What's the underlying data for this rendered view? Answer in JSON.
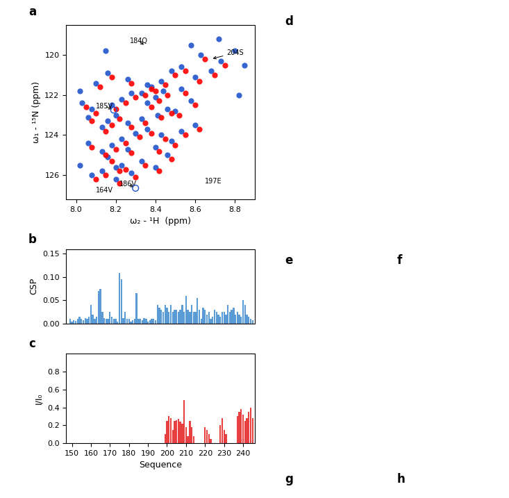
{
  "chart_data": [
    {
      "type": "scatter",
      "panel_label": "a",
      "xlabel": "ω₂ - ¹H  (ppm)",
      "ylabel": "ω₁ - ¹⁵N (ppm)",
      "xlim": [
        7.95,
        8.9
      ],
      "ylim": [
        127.2,
        118.5
      ],
      "xticks": [
        8.8,
        8.6,
        8.4,
        8.2,
        8.0
      ],
      "yticks": [
        120,
        122,
        124,
        126
      ],
      "series": [
        {
          "color": "#2255cc",
          "marker": "circle",
          "x": [
            8.63,
            8.53,
            8.6,
            8.48,
            8.43,
            8.38,
            8.33,
            8.4,
            8.36,
            8.28,
            8.23,
            8.18,
            8.46,
            8.41,
            8.33,
            8.26,
            8.2,
            8.16,
            8.13,
            8.08,
            8.06,
            8.03,
            8.3,
            8.23,
            8.18,
            8.13,
            8.4,
            8.48,
            8.43,
            8.36,
            8.26,
            8.16,
            8.06,
            8.33,
            8.4,
            8.28,
            8.2,
            8.13,
            8.23,
            8.46,
            8.53,
            8.58,
            8.5,
            8.44,
            8.36,
            8.26,
            8.16,
            8.1,
            8.68,
            8.73,
            8.6,
            8.53,
            8.2,
            8.08,
            8.15,
            8.58,
            8.72,
            8.8,
            8.82,
            8.85,
            8.02,
            8.02
          ],
          "y": [
            120.0,
            120.6,
            121.1,
            120.8,
            121.3,
            121.6,
            121.9,
            122.1,
            122.4,
            121.9,
            122.2,
            122.5,
            122.7,
            123.0,
            123.2,
            123.4,
            123.0,
            123.3,
            123.6,
            122.7,
            123.1,
            122.4,
            123.9,
            124.2,
            124.5,
            124.8,
            124.6,
            124.3,
            124.0,
            123.7,
            124.7,
            125.1,
            124.4,
            125.3,
            125.6,
            125.9,
            126.2,
            125.8,
            125.5,
            125.0,
            121.7,
            122.3,
            122.8,
            121.8,
            121.5,
            121.2,
            120.9,
            121.4,
            120.8,
            120.3,
            123.5,
            123.8,
            125.6,
            126.0,
            119.8,
            119.5,
            119.2,
            119.8,
            122.0,
            120.5,
            121.8,
            125.5
          ]
        },
        {
          "color": "red",
          "marker": "circle",
          "x": [
            8.65,
            8.55,
            8.62,
            8.5,
            8.45,
            8.4,
            8.35,
            8.42,
            8.38,
            8.3,
            8.25,
            8.2,
            8.48,
            8.43,
            8.35,
            8.28,
            8.22,
            8.18,
            8.15,
            8.1,
            8.08,
            8.05,
            8.32,
            8.25,
            8.2,
            8.15,
            8.42,
            8.5,
            8.45,
            8.38,
            8.28,
            8.18,
            8.08,
            8.35,
            8.42,
            8.3,
            8.22,
            8.15,
            8.25,
            8.48,
            8.55,
            8.6,
            8.52,
            8.46,
            8.38,
            8.28,
            8.18,
            8.12,
            8.7,
            8.75,
            8.62,
            8.55,
            8.22,
            8.1
          ],
          "y": [
            120.2,
            120.8,
            121.3,
            121.0,
            121.5,
            121.8,
            122.0,
            122.3,
            122.6,
            122.1,
            122.4,
            122.7,
            122.9,
            123.1,
            123.4,
            123.6,
            123.2,
            123.5,
            123.8,
            122.9,
            123.3,
            122.6,
            124.1,
            124.4,
            124.7,
            125.0,
            124.8,
            124.5,
            124.2,
            123.9,
            124.9,
            125.3,
            124.6,
            125.5,
            125.8,
            126.1,
            126.4,
            126.0,
            125.7,
            125.2,
            121.9,
            122.5,
            123.0,
            122.0,
            121.7,
            121.4,
            121.1,
            121.6,
            121.0,
            120.5,
            123.7,
            124.0,
            125.8,
            126.2
          ]
        },
        {
          "color": "#2255cc",
          "marker": "open_circle",
          "x": [
            8.19,
            8.3
          ],
          "y": [
            122.75,
            126.65
          ]
        }
      ],
      "annotations": [
        {
          "text": "204S",
          "x": 8.68,
          "y": 120.2,
          "text_x": 8.76,
          "text_y": 119.9,
          "arrow": true
        },
        {
          "text": "184Q",
          "x": 8.35,
          "y": 119.55,
          "text_x": 8.27,
          "text_y": 119.3,
          "arrow": true
        },
        {
          "text": "185V",
          "x": 8.19,
          "y": 122.75,
          "text_x": 8.1,
          "text_y": 122.55,
          "arrow": true
        },
        {
          "text": "197E",
          "x": 8.7,
          "y": 126.5,
          "text_x": 8.65,
          "text_y": 126.3,
          "arrow": false
        },
        {
          "text": "186V",
          "x": 8.3,
          "y": 126.65,
          "text_x": 8.22,
          "text_y": 126.45,
          "arrow": true
        },
        {
          "text": "164V",
          "x": 8.15,
          "y": 126.95,
          "text_x": 8.1,
          "text_y": 126.75,
          "arrow": false
        }
      ]
    },
    {
      "type": "bar",
      "panel_label": "b",
      "ylabel": "CSP",
      "color": "#5b9bd5",
      "x": [
        149,
        150,
        151,
        152,
        153,
        154,
        155,
        156,
        157,
        158,
        159,
        160,
        161,
        162,
        163,
        164,
        165,
        166,
        167,
        168,
        169,
        170,
        171,
        172,
        173,
        174,
        175,
        176,
        177,
        178,
        179,
        180,
        181,
        182,
        183,
        184,
        185,
        186,
        187,
        188,
        189,
        190,
        191,
        192,
        193,
        194,
        195,
        196,
        197,
        198,
        199,
        200,
        201,
        202,
        203,
        204,
        205,
        206,
        207,
        208,
        209,
        210,
        211,
        212,
        213,
        214,
        215,
        216,
        217,
        218,
        219,
        220,
        221,
        222,
        223,
        224,
        225,
        226,
        227,
        228,
        229,
        230,
        231,
        232,
        233,
        234,
        235,
        236,
        237,
        238,
        239,
        240,
        241,
        242,
        243,
        244,
        245
      ],
      "values": [
        0.01,
        0.005,
        0.008,
        0.006,
        0.01,
        0.015,
        0.01,
        0.008,
        0.012,
        0.01,
        0.015,
        0.04,
        0.02,
        0.01,
        0.015,
        0.07,
        0.075,
        0.025,
        0.012,
        0.01,
        0.01,
        0.025,
        0.015,
        0.01,
        0.01,
        0.005,
        0.108,
        0.095,
        0.012,
        0.025,
        0.01,
        0.01,
        0.005,
        0.008,
        0.01,
        0.065,
        0.01,
        0.01,
        0.008,
        0.012,
        0.01,
        0.005,
        0.008,
        0.01,
        0.01,
        0.008,
        0.04,
        0.035,
        0.03,
        0.025,
        0.04,
        0.035,
        0.025,
        0.04,
        0.025,
        0.03,
        0.03,
        0.025,
        0.03,
        0.04,
        0.025,
        0.06,
        0.03,
        0.025,
        0.04,
        0.025,
        0.025,
        0.055,
        0.03,
        0.01,
        0.035,
        0.03,
        0.02,
        0.025,
        0.01,
        0.015,
        0.03,
        0.025,
        0.02,
        0.015,
        0.025,
        0.025,
        0.02,
        0.04,
        0.025,
        0.03,
        0.035,
        0.02,
        0.025,
        0.02,
        0.015,
        0.05,
        0.04,
        0.02,
        0.015,
        0.01,
        0.008
      ],
      "xlim": [
        147,
        246
      ],
      "ylim": [
        0,
        0.16
      ],
      "yticks": [
        {
          "value": 0.0,
          "label": "0.00"
        },
        0.05,
        {
          "value": 0.1,
          "label": "0.10"
        },
        0.15
      ],
      "tick_labels": "y"
    },
    {
      "type": "bar",
      "panel_label": "c",
      "ylabel": "I/I₀",
      "xlabel": "Sequence",
      "color": "#e84040",
      "x": [
        149,
        150,
        151,
        152,
        153,
        154,
        155,
        156,
        157,
        158,
        159,
        160,
        161,
        162,
        163,
        164,
        165,
        166,
        167,
        168,
        169,
        170,
        171,
        172,
        173,
        174,
        175,
        176,
        177,
        178,
        179,
        180,
        181,
        182,
        183,
        184,
        185,
        186,
        187,
        188,
        189,
        190,
        191,
        192,
        193,
        194,
        195,
        196,
        197,
        198,
        199,
        200,
        201,
        202,
        203,
        204,
        205,
        206,
        207,
        208,
        209,
        210,
        211,
        212,
        213,
        214,
        215,
        216,
        217,
        218,
        219,
        220,
        221,
        222,
        223,
        224,
        225,
        226,
        227,
        228,
        229,
        230,
        231,
        232,
        233,
        234,
        235,
        236,
        237,
        238,
        239,
        240,
        241,
        242,
        243,
        244,
        245
      ],
      "values": [
        0,
        0,
        0,
        0,
        0,
        0,
        0,
        0,
        0,
        0,
        0,
        0,
        0,
        0,
        0,
        0,
        0,
        0,
        0,
        0,
        0,
        0,
        0,
        0,
        0,
        0,
        0,
        0,
        0,
        0,
        0,
        0,
        0,
        0,
        0,
        0,
        0,
        0,
        0,
        0,
        0,
        0,
        0,
        0,
        0,
        0,
        0,
        0,
        0,
        0,
        0.1,
        0.25,
        0.3,
        0.28,
        0.15,
        0.25,
        0.26,
        0.27,
        0.24,
        0.22,
        0.48,
        0.18,
        0.08,
        0.25,
        0.18,
        0.08,
        0.0,
        0.0,
        0.0,
        0.0,
        0.0,
        0.18,
        0.15,
        0.1,
        0.05,
        0.0,
        0.0,
        0.0,
        0.0,
        0.2,
        0.28,
        0.15,
        0.1,
        0.0,
        0.0,
        0.0,
        0.0,
        0.0,
        0.3,
        0.35,
        0.38,
        0.32,
        0.25,
        0.28,
        0.35,
        0.4,
        0.28
      ],
      "xlim": [
        147,
        246
      ],
      "ylim": [
        0,
        1.0
      ],
      "xticks": [
        150,
        160,
        170,
        180,
        190,
        200,
        210,
        220,
        230,
        240
      ],
      "yticks": [
        0.0,
        0.2,
        0.4,
        0.6,
        0.8
      ]
    }
  ],
  "figure_labels": [
    "d",
    "e",
    "f",
    "g",
    "h"
  ]
}
